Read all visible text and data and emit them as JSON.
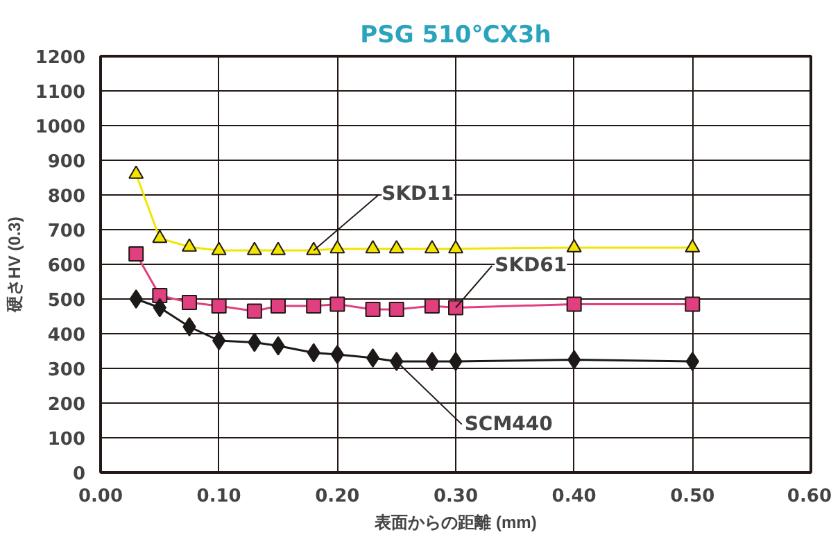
{
  "chart_data": {
    "type": "line",
    "title": "PSG 510℃X3h",
    "xlabel": "表面からの距離 (mm)",
    "ylabel": "硬さHV (0.3)",
    "xlim": [
      0,
      0.6
    ],
    "xticks": [
      {
        "value": 0,
        "label": "0.00"
      },
      {
        "value": 0.1,
        "label": "0.10"
      },
      {
        "value": 0.2,
        "label": "0.20"
      },
      {
        "value": 0.3,
        "label": "0.30"
      },
      {
        "value": 0.4,
        "label": "0.40"
      },
      {
        "value": 0.5,
        "label": "0.50"
      },
      {
        "value": 0.6,
        "label": "0.60"
      }
    ],
    "ylim": [
      0,
      1200
    ],
    "yticks": [
      0,
      100,
      200,
      300,
      400,
      500,
      600,
      700,
      800,
      900,
      1000,
      1100,
      1200
    ],
    "grid": true,
    "x": [
      0.03,
      0.05,
      0.075,
      0.1,
      0.13,
      0.15,
      0.18,
      0.2,
      0.23,
      0.25,
      0.28,
      0.3,
      0.4,
      0.5
    ],
    "series": [
      {
        "name": "SKD11",
        "color": "#f2e600",
        "marker": "triangle",
        "values": [
          860,
          675,
          650,
          640,
          640,
          640,
          640,
          645,
          645,
          645,
          645,
          645,
          648,
          648
        ]
      },
      {
        "name": "SKD61",
        "color": "#e0407f",
        "marker": "square",
        "values": [
          630,
          510,
          490,
          480,
          465,
          480,
          480,
          485,
          470,
          470,
          480,
          475,
          485,
          485
        ]
      },
      {
        "name": "SCM440",
        "color": "#1a1a1a",
        "marker": "diamond",
        "values": [
          500,
          475,
          420,
          380,
          375,
          365,
          345,
          340,
          330,
          320,
          320,
          320,
          325,
          320
        ]
      }
    ]
  }
}
